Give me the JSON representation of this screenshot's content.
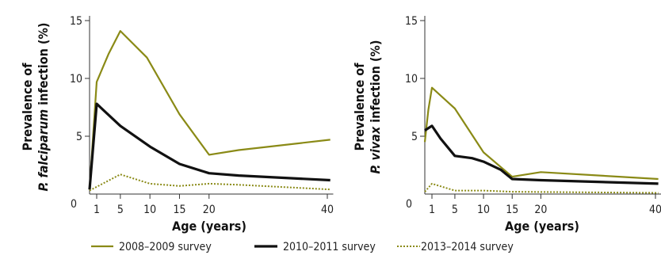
{
  "colors": {
    "s2008": "#8a8a16",
    "s2010": "#111111",
    "s2013": "#8a8a16",
    "axis": "#333333"
  },
  "legend": {
    "s2008": "2008–2009 survey",
    "s2010": "2010–2011 survey",
    "s2013": "2013–2014 survey"
  },
  "chart_data": [
    {
      "type": "line",
      "ylabel_line1": "Prevalence of",
      "ylabel_species": "P. falciparum",
      "ylabel_rest": " infection (%)",
      "xlabel": "Age (years)",
      "ylim": [
        0,
        15
      ],
      "xlim": [
        0,
        41
      ],
      "xticks": [
        0,
        1,
        5,
        10,
        15,
        20,
        40
      ],
      "yticks": [
        5,
        10,
        15
      ],
      "series": [
        {
          "key": "s2008",
          "style": "solid",
          "points": [
            [
              0,
              0.4
            ],
            [
              1,
              9.7
            ],
            [
              3,
              12.1
            ],
            [
              5,
              14.1
            ],
            [
              9.5,
              11.8
            ],
            [
              15,
              6.9
            ],
            [
              20,
              3.4
            ],
            [
              25,
              3.8
            ],
            [
              40.5,
              4.7
            ]
          ]
        },
        {
          "key": "s2010",
          "style": "solid",
          "points": [
            [
              0,
              0.4
            ],
            [
              1,
              7.8
            ],
            [
              5,
              5.9
            ],
            [
              10,
              4.1
            ],
            [
              15,
              2.6
            ],
            [
              20,
              1.8
            ],
            [
              25,
              1.6
            ],
            [
              40.5,
              1.2
            ]
          ]
        },
        {
          "key": "s2013",
          "style": "dotted",
          "points": [
            [
              0,
              0.3
            ],
            [
              5,
              1.7
            ],
            [
              10,
              0.9
            ],
            [
              15,
              0.7
            ],
            [
              20,
              0.9
            ],
            [
              25,
              0.8
            ],
            [
              40.5,
              0.4
            ]
          ]
        }
      ]
    },
    {
      "type": "line",
      "ylabel_line1": "Prevalence of",
      "ylabel_species": "P. vivax",
      "ylabel_rest": " infection (%)",
      "xlabel": "Age (years)",
      "ylim": [
        0,
        15
      ],
      "xlim": [
        0,
        41
      ],
      "xticks": [
        0,
        1,
        5,
        10,
        15,
        20,
        40
      ],
      "yticks": [
        5,
        10,
        15
      ],
      "series": [
        {
          "key": "s2008",
          "style": "solid",
          "points": [
            [
              0,
              4.5
            ],
            [
              0.5,
              7.3
            ],
            [
              1,
              9.2
            ],
            [
              5,
              7.4
            ],
            [
              10,
              3.6
            ],
            [
              15,
              1.5
            ],
            [
              20,
              1.9
            ],
            [
              40.5,
              1.3
            ]
          ]
        },
        {
          "key": "s2010",
          "style": "solid",
          "points": [
            [
              0,
              5.5
            ],
            [
              1,
              5.9
            ],
            [
              2.5,
              4.8
            ],
            [
              5,
              3.3
            ],
            [
              8,
              3.1
            ],
            [
              10,
              2.8
            ],
            [
              13,
              2.1
            ],
            [
              15,
              1.3
            ],
            [
              20,
              1.2
            ],
            [
              40.5,
              0.9
            ]
          ]
        },
        {
          "key": "s2013",
          "style": "dotted",
          "points": [
            [
              0,
              0.2
            ],
            [
              1,
              0.9
            ],
            [
              5,
              0.3
            ],
            [
              10,
              0.3
            ],
            [
              15,
              0.2
            ],
            [
              40.5,
              0.1
            ]
          ]
        }
      ]
    }
  ]
}
